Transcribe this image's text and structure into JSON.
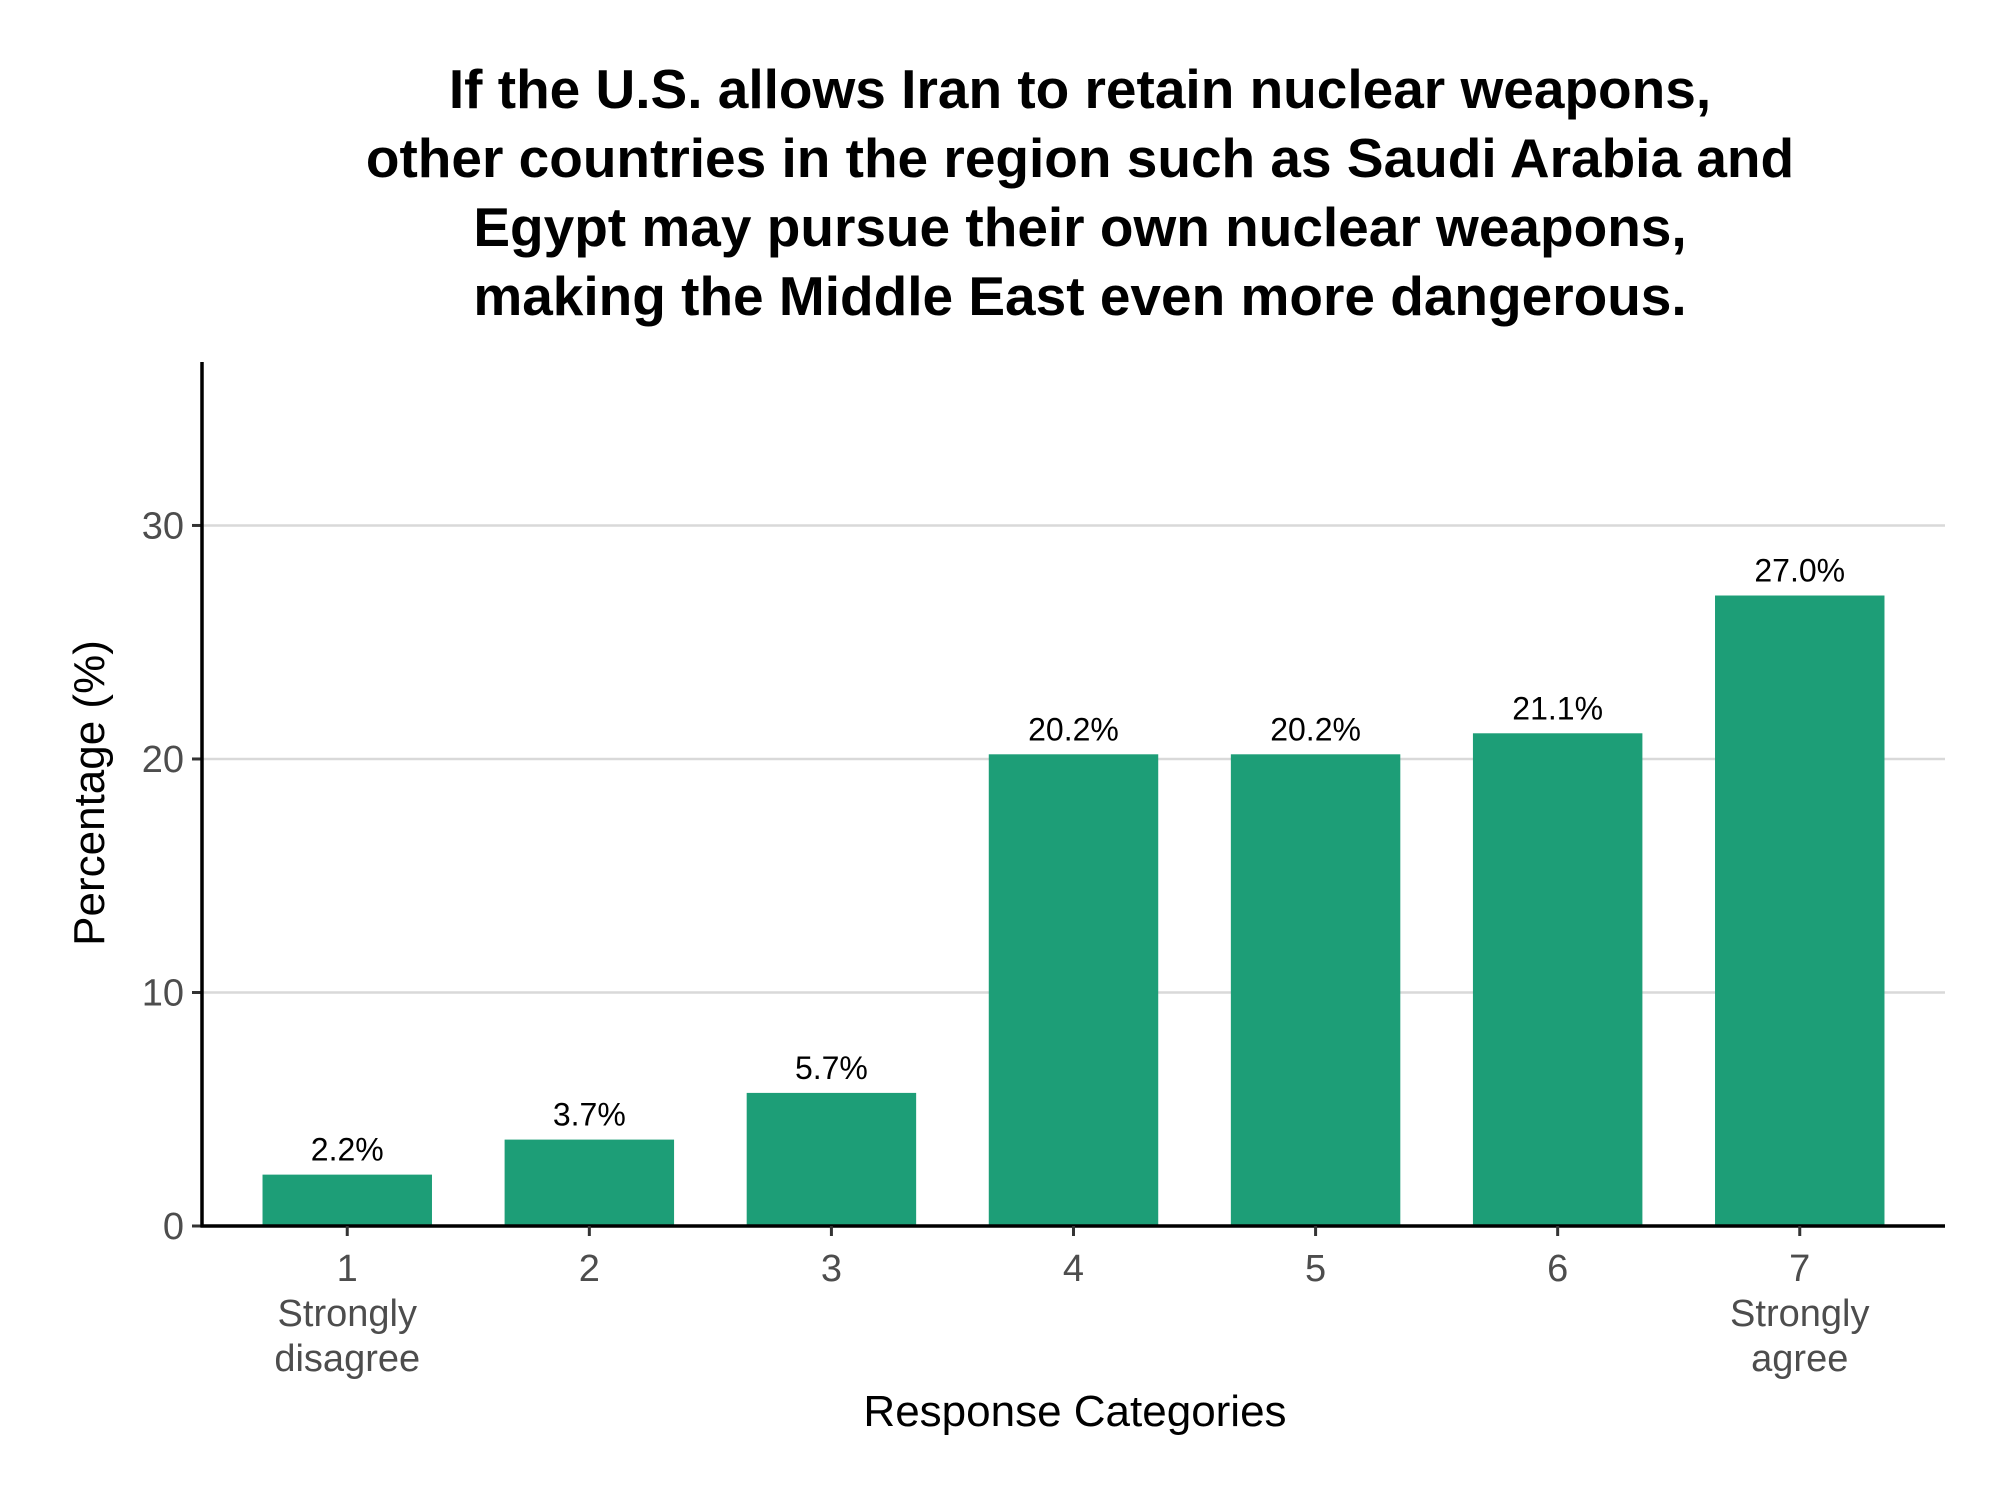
{
  "chart_data": {
    "type": "bar",
    "title_lines": [
      "If the U.S. allows Iran to retain nuclear weapons,",
      "other countries in the region such as Saudi Arabia and",
      "Egypt may pursue their own nuclear weapons,",
      "making the Middle East even more dangerous."
    ],
    "xlabel": "Response Categories",
    "ylabel": "Percentage (%)",
    "categories": [
      "1",
      "2",
      "3",
      "4",
      "5",
      "6",
      "7"
    ],
    "category_sublabels": [
      [
        "Strongly",
        "disagree"
      ],
      [],
      [],
      [],
      [],
      [],
      [
        "Strongly",
        "agree"
      ]
    ],
    "values": [
      2.2,
      3.7,
      5.7,
      20.2,
      20.2,
      21.1,
      27.0
    ],
    "value_labels": [
      "2.2%",
      "3.7%",
      "5.7%",
      "20.2%",
      "20.2%",
      "21.1%",
      "27.0%"
    ],
    "ylim": [
      0,
      37
    ],
    "yticks": [
      0,
      10,
      20,
      30
    ],
    "grid": "horizontal major",
    "bar_color": "#1d9e77",
    "legend": "none"
  }
}
